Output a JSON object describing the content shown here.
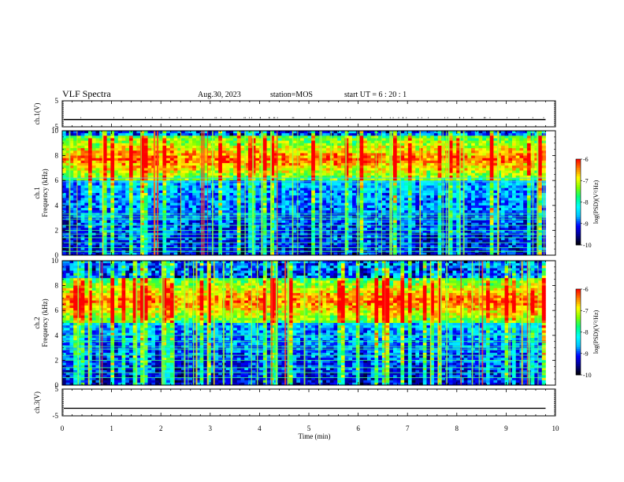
{
  "header": {
    "title": "VLF Spectra",
    "date": "Aug.30, 2023",
    "station": "station=MOS",
    "start": "start  UT =   6 : 20 : 1"
  },
  "chart_data": [
    {
      "type": "line",
      "name": "ch1-waveform-panel",
      "ylabel": "ch.1(V)",
      "ylim": [
        -5,
        5
      ],
      "yticks": [
        "5",
        "-5"
      ],
      "level": -2.2,
      "grid": false
    },
    {
      "type": "heatmap",
      "name": "ch1-spectrogram",
      "ylabel": "ch.1\nFrequency (kHz)",
      "ylabel_lines": [
        "ch.1",
        "Frequency (kHz)"
      ],
      "ylim": [
        0,
        10
      ],
      "yticks": [
        "0",
        "2",
        "4",
        "6",
        "8",
        "10"
      ],
      "xlim": [
        0,
        10
      ],
      "data_extent_min": 9.8,
      "colorbar": {
        "label": "log(PSD)(V²/Hz)",
        "range": [
          -10,
          -6
        ],
        "ticks": [
          "-6",
          "-7",
          "-8",
          "-9",
          "-10"
        ]
      },
      "narrowband_lines_khz": [
        0.3,
        0.6,
        1.0,
        1.4,
        1.7,
        2.0,
        2.4,
        2.9,
        3.1,
        3.3,
        5.9,
        6.2
      ],
      "intense_band_khz": [
        6.0,
        9.5
      ]
    },
    {
      "type": "heatmap",
      "name": "ch2-spectrogram",
      "ylabel": "ch.2\nFrequency (kHz)",
      "ylabel_lines": [
        "ch.2",
        "Frequency (kHz)"
      ],
      "ylim": [
        0,
        10
      ],
      "yticks": [
        "0",
        "2",
        "4",
        "6",
        "8",
        "10"
      ],
      "xlim": [
        0,
        10
      ],
      "data_extent_min": 9.8,
      "colorbar": {
        "label": "log(PSD)(V²/Hz)",
        "range": [
          -10,
          -6
        ],
        "ticks": [
          "-6",
          "-7",
          "-8",
          "-9",
          "-10"
        ]
      },
      "narrowband_lines_khz": [
        0.6,
        1.0,
        1.4,
        2.0,
        2.4,
        2.9,
        3.1,
        3.5,
        4.0
      ],
      "intense_band_khz": [
        5.0,
        8.5
      ]
    },
    {
      "type": "line",
      "name": "ch3-waveform-panel",
      "ylabel": "ch.3(V)",
      "ylim": [
        -5,
        5
      ],
      "yticks": [
        "5",
        "-5"
      ],
      "level": -2.2,
      "grid": false
    }
  ],
  "xaxis": {
    "label": "Time  (min)",
    "range": [
      0,
      10
    ],
    "ticks": [
      "0",
      "1",
      "2",
      "3",
      "4",
      "5",
      "6",
      "7",
      "8",
      "9",
      "10"
    ]
  },
  "colors": {
    "background": "#ffffff",
    "ink": "#000000",
    "colormap": [
      "#000000",
      "#00008b",
      "#0000ff",
      "#00bfff",
      "#00ffff",
      "#00ff7f",
      "#7fff00",
      "#ffff00",
      "#ff7f00",
      "#ff0000"
    ]
  }
}
